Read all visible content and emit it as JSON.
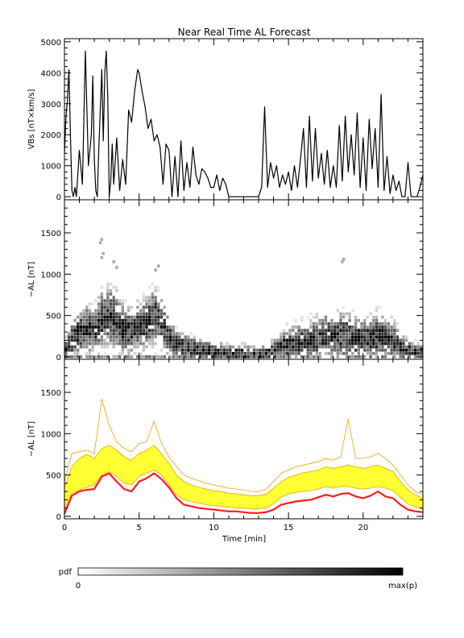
{
  "chart_data": [
    {
      "type": "line",
      "title": "Near Real Time AL Forecast",
      "ylabel": "VBs [nT×km/s]",
      "ylim": [
        -100,
        5100
      ],
      "yticks": [
        0,
        1000,
        2000,
        3000,
        4000,
        5000
      ],
      "x": [
        0.0,
        0.1,
        0.2,
        0.3,
        0.4,
        0.5,
        0.6,
        0.7,
        0.8,
        1.0,
        1.2,
        1.4,
        1.6,
        1.8,
        1.9,
        2.0,
        2.1,
        2.2,
        2.3,
        2.5,
        2.6,
        2.7,
        2.8,
        2.9,
        3.0,
        3.1,
        3.2,
        3.3,
        3.5,
        3.7,
        3.9,
        4.1,
        4.3,
        4.5,
        4.7,
        4.9,
        5.0,
        5.2,
        5.4,
        5.6,
        5.8,
        6.0,
        6.2,
        6.4,
        6.6,
        6.8,
        7.0,
        7.2,
        7.4,
        7.6,
        7.8,
        8.0,
        8.2,
        8.4,
        8.6,
        8.8,
        9.0,
        9.2,
        9.4,
        9.6,
        9.8,
        10.0,
        10.2,
        10.4,
        10.6,
        10.8,
        11.0,
        11.2,
        11.4,
        11.6,
        11.8,
        12.0,
        12.2,
        12.5,
        12.8,
        13.0,
        13.2,
        13.4,
        13.6,
        13.8,
        14.0,
        14.2,
        14.4,
        14.6,
        14.8,
        15.0,
        15.2,
        15.4,
        15.6,
        15.8,
        16.0,
        16.2,
        16.4,
        16.6,
        16.8,
        17.0,
        17.2,
        17.4,
        17.6,
        17.8,
        18.0,
        18.2,
        18.4,
        18.6,
        18.8,
        19.0,
        19.2,
        19.4,
        19.6,
        19.8,
        20.0,
        20.2,
        20.4,
        20.6,
        20.8,
        21.0,
        21.2,
        21.4,
        21.6,
        21.8,
        22.0,
        22.2,
        22.4,
        22.6,
        22.8,
        23.0,
        23.2,
        23.4,
        23.6,
        23.8,
        24.0
      ],
      "series": [
        {
          "values": [
            1400,
            2600,
            3100,
            4100,
            2000,
            200,
            0,
            300,
            0,
            1500,
            400,
            4700,
            1000,
            2000,
            3900,
            1200,
            200,
            0,
            1500,
            4100,
            1800,
            4000,
            4700,
            3200,
            0,
            500,
            1700,
            400,
            1900,
            200,
            1200,
            400,
            2800,
            2400,
            3400,
            4100,
            4000,
            3400,
            2900,
            2200,
            2500,
            1800,
            2000,
            1600,
            400,
            1700,
            1500,
            0,
            1300,
            0,
            1800,
            200,
            1100,
            300,
            1600,
            700,
            400,
            900,
            800,
            600,
            300,
            300,
            700,
            200,
            600,
            400,
            0,
            0,
            0,
            0,
            0,
            0,
            0,
            0,
            0,
            0,
            300,
            2900,
            300,
            1100,
            600,
            1000,
            300,
            700,
            400,
            800,
            200,
            1000,
            300,
            1200,
            2200,
            300,
            2600,
            500,
            2200,
            600,
            1400,
            400,
            1500,
            300,
            1000,
            300,
            2300,
            500,
            2600,
            800,
            2000,
            700,
            2700,
            300,
            1900,
            200,
            2500,
            900,
            2200,
            300,
            3300,
            200,
            1300,
            100,
            700,
            200,
            500,
            0,
            0,
            1100,
            0,
            0,
            0,
            300,
            700
          ]
        }
      ]
    },
    {
      "type": "heatmap",
      "ylabel": "−AL [nT]",
      "ylim": [
        -30,
        1900
      ],
      "yticks": [
        0,
        500,
        1000,
        1500
      ],
      "x": [
        0.0,
        0.5,
        1.0,
        1.5,
        2.0,
        2.5,
        3.0,
        3.5,
        4.0,
        4.5,
        5.0,
        5.5,
        6.0,
        6.5,
        7.0,
        7.5,
        8.0,
        8.5,
        9.0,
        9.5,
        10.0,
        10.5,
        11.0,
        11.5,
        12.0,
        12.5,
        13.0,
        13.5,
        14.0,
        14.5,
        15.0,
        15.5,
        16.0,
        16.5,
        17.0,
        17.5,
        18.0,
        18.5,
        19.0,
        19.5,
        20.0,
        20.5,
        21.0,
        21.5,
        22.0,
        22.5,
        23.0,
        23.5,
        24.0
      ],
      "center": [
        50,
        200,
        300,
        350,
        300,
        450,
        500,
        430,
        320,
        300,
        380,
        420,
        500,
        400,
        250,
        150,
        120,
        100,
        80,
        70,
        60,
        50,
        40,
        40,
        40,
        30,
        30,
        30,
        70,
        120,
        150,
        160,
        170,
        180,
        220,
        260,
        230,
        250,
        250,
        220,
        200,
        220,
        250,
        220,
        200,
        120,
        80,
        60,
        50
      ],
      "spread": [
        150,
        250,
        300,
        320,
        300,
        380,
        420,
        380,
        320,
        300,
        320,
        350,
        380,
        330,
        250,
        200,
        180,
        170,
        160,
        150,
        140,
        130,
        120,
        120,
        120,
        110,
        110,
        120,
        150,
        200,
        230,
        250,
        270,
        280,
        300,
        320,
        300,
        320,
        320,
        300,
        290,
        300,
        310,
        290,
        270,
        200,
        150,
        120,
        100
      ],
      "outliers": [
        [
          2.4,
          1380
        ],
        [
          2.5,
          1420
        ],
        [
          2.6,
          1250
        ],
        [
          2.5,
          1200
        ],
        [
          3.3,
          1150
        ],
        [
          3.5,
          1080
        ],
        [
          6.3,
          1100
        ],
        [
          6.1,
          1050
        ],
        [
          18.6,
          1150
        ],
        [
          18.7,
          1180
        ]
      ],
      "colorbar": {
        "label": "pdf",
        "min_label": "0",
        "max_label": "max(p)"
      }
    },
    {
      "type": "area",
      "ylabel": "−AL [nT]",
      "xlabel": "Time [min]",
      "ylim": [
        -30,
        1900
      ],
      "yticks": [
        0,
        500,
        1000,
        1500
      ],
      "xlim": [
        0,
        24
      ],
      "xticks": [
        0,
        5,
        10,
        15,
        20
      ],
      "x": [
        0.0,
        0.5,
        1.0,
        1.5,
        2.0,
        2.5,
        3.0,
        3.5,
        4.0,
        4.5,
        5.0,
        5.5,
        6.0,
        6.5,
        7.0,
        7.5,
        8.0,
        8.5,
        9.0,
        9.5,
        10.0,
        10.5,
        11.0,
        11.5,
        12.0,
        12.5,
        13.0,
        13.5,
        14.0,
        14.5,
        15.0,
        15.5,
        16.0,
        16.5,
        17.0,
        17.5,
        18.0,
        18.5,
        19.0,
        19.5,
        20.0,
        20.5,
        21.0,
        21.5,
        22.0,
        22.5,
        23.0,
        23.5,
        24.0
      ],
      "series": [
        {
          "name": "median",
          "values": [
            30,
            250,
            300,
            320,
            330,
            480,
            520,
            420,
            330,
            300,
            420,
            460,
            520,
            450,
            350,
            220,
            140,
            120,
            100,
            90,
            80,
            70,
            60,
            60,
            50,
            40,
            40,
            50,
            80,
            140,
            160,
            180,
            190,
            200,
            230,
            260,
            240,
            270,
            280,
            240,
            220,
            250,
            300,
            240,
            220,
            140,
            80,
            60,
            50
          ]
        },
        {
          "name": "lower",
          "values": [
            100,
            280,
            320,
            350,
            380,
            500,
            540,
            480,
            400,
            380,
            480,
            520,
            560,
            500,
            380,
            260,
            200,
            180,
            160,
            140,
            130,
            120,
            110,
            100,
            100,
            90,
            90,
            100,
            150,
            230,
            270,
            290,
            300,
            310,
            330,
            360,
            340,
            360,
            360,
            340,
            330,
            340,
            360,
            340,
            310,
            230,
            150,
            110,
            90
          ]
        },
        {
          "name": "upper",
          "values": [
            350,
            600,
            700,
            750,
            700,
            820,
            860,
            800,
            720,
            680,
            760,
            800,
            860,
            760,
            640,
            500,
            420,
            380,
            350,
            330,
            310,
            300,
            280,
            270,
            260,
            250,
            250,
            270,
            340,
            420,
            470,
            500,
            530,
            540,
            560,
            600,
            580,
            600,
            620,
            600,
            580,
            600,
            620,
            580,
            540,
            420,
            320,
            260,
            220
          ]
        },
        {
          "name": "max",
          "values": [
            420,
            760,
            780,
            800,
            760,
            1420,
            1100,
            900,
            820,
            780,
            880,
            900,
            1150,
            880,
            720,
            600,
            500,
            460,
            430,
            400,
            380,
            360,
            340,
            330,
            320,
            300,
            300,
            330,
            420,
            520,
            560,
            600,
            620,
            640,
            660,
            700,
            680,
            720,
            1180,
            700,
            700,
            720,
            760,
            700,
            620,
            500,
            380,
            300,
            260
          ]
        }
      ],
      "colors": {
        "band": "#ffff33",
        "band_edge": "#f0a000",
        "median": "#ff1a1a"
      }
    }
  ]
}
